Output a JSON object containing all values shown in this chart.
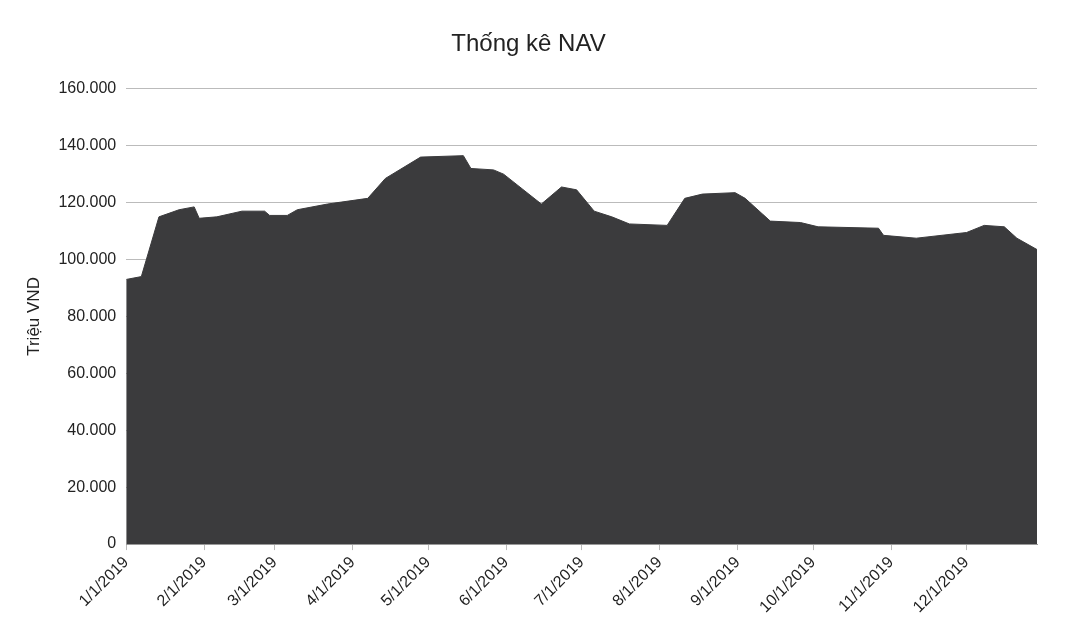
{
  "chart_data": {
    "type": "area",
    "title": "Thống kê NAV",
    "ylabel": "Triệu VND",
    "x": [
      "2019-01-01",
      "2019-01-07",
      "2019-01-14",
      "2019-01-22",
      "2019-01-28",
      "2019-01-30",
      "2019-02-06",
      "2019-02-16",
      "2019-02-25",
      "2019-02-27",
      "2019-03-06",
      "2019-03-10",
      "2019-03-22",
      "2019-04-07",
      "2019-04-14",
      "2019-04-28",
      "2019-05-15",
      "2019-05-18",
      "2019-05-27",
      "2019-05-31",
      "2019-06-15",
      "2019-06-23",
      "2019-06-29",
      "2019-07-06",
      "2019-07-13",
      "2019-07-20",
      "2019-08-04",
      "2019-08-11",
      "2019-08-18",
      "2019-08-31",
      "2019-09-04",
      "2019-09-14",
      "2019-09-26",
      "2019-10-03",
      "2019-10-27",
      "2019-10-29",
      "2019-11-11",
      "2019-12-01",
      "2019-12-08",
      "2019-12-16",
      "2019-12-21",
      "2019-12-29"
    ],
    "series": [
      {
        "color": "#3b3b3d",
        "values": [
          93000,
          94000,
          115000,
          117500,
          118500,
          114500,
          115000,
          117000,
          117000,
          115500,
          115500,
          117500,
          119500,
          121500,
          128500,
          136000,
          136500,
          132000,
          131500,
          130000,
          119500,
          125500,
          124500,
          117000,
          115000,
          112500,
          112000,
          121500,
          123000,
          123500,
          121500,
          113500,
          113000,
          111500,
          111000,
          108500,
          107500,
          109500,
          112000,
          111500,
          107500,
          103500
        ]
      }
    ],
    "xlim": [
      "2019-01-01",
      "2019-12-29"
    ],
    "xticks": [
      {
        "value": "2019-01-01",
        "label": "1/1/2019"
      },
      {
        "value": "2019-02-01",
        "label": "2/1/2019"
      },
      {
        "value": "2019-03-01",
        "label": "3/1/2019"
      },
      {
        "value": "2019-04-01",
        "label": "4/1/2019"
      },
      {
        "value": "2019-05-01",
        "label": "5/1/2019"
      },
      {
        "value": "2019-06-01",
        "label": "6/1/2019"
      },
      {
        "value": "2019-07-01",
        "label": "7/1/2019"
      },
      {
        "value": "2019-08-01",
        "label": "8/1/2019"
      },
      {
        "value": "2019-09-01",
        "label": "9/1/2019"
      },
      {
        "value": "2019-10-01",
        "label": "10/1/2019"
      },
      {
        "value": "2019-11-01",
        "label": "11/1/2019"
      },
      {
        "value": "2019-12-01",
        "label": "12/1/2019"
      }
    ],
    "ylim": [
      0,
      160000
    ],
    "yticks": [
      0,
      {
        "value": 20000,
        "label": "20.000"
      },
      {
        "value": 40000,
        "label": "40.000"
      },
      {
        "value": 60000,
        "label": "60.000"
      },
      {
        "value": 80000,
        "label": "80.000"
      },
      {
        "value": 100000,
        "label": "100.000"
      },
      {
        "value": 120000,
        "label": "120.000"
      },
      {
        "value": 140000,
        "label": "140.000"
      },
      {
        "value": 160000,
        "label": "160.000"
      }
    ],
    "grid": "y",
    "legend": false
  }
}
